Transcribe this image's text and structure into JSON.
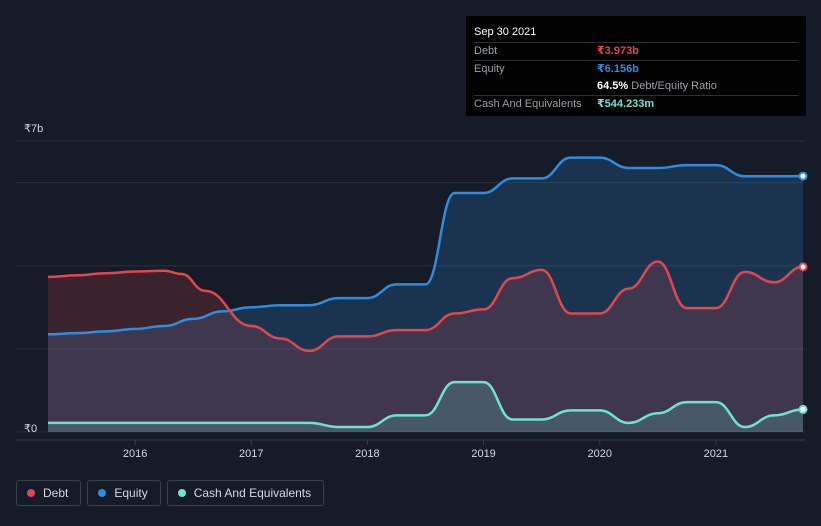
{
  "tooltip": {
    "date": "Sep 30 2021",
    "debt_label": "Debt",
    "debt_value": "₹3.973b",
    "equity_label": "Equity",
    "equity_value": "₹6.156b",
    "ratio_value": "64.5%",
    "ratio_label": "Debt/Equity Ratio",
    "cash_label": "Cash And Equivalents",
    "cash_value": "₹544.233m"
  },
  "legend": {
    "debt": "Debt",
    "equity": "Equity",
    "cash": "Cash And Equivalents"
  },
  "colors": {
    "debt": "#e2474f",
    "equity": "#2e8de0",
    "cash": "#6fe3d1",
    "background": "#151b27"
  },
  "chart_data": {
    "type": "area",
    "y_tick_labels": [
      "₹0",
      "₹7b"
    ],
    "ylim": [
      0,
      7
    ],
    "xlim": [
      2015.25,
      2021.75
    ],
    "x_tick_labels": [
      "2016",
      "2017",
      "2018",
      "2019",
      "2020",
      "2021"
    ],
    "x_ticks": [
      2016,
      2017,
      2018,
      2019,
      2020,
      2021
    ],
    "gridlines": [
      0,
      2,
      4,
      6,
      7
    ],
    "series": [
      {
        "name": "Debt",
        "points": [
          [
            2015.25,
            3.73
          ],
          [
            2015.5,
            3.77
          ],
          [
            2015.75,
            3.82
          ],
          [
            2016.0,
            3.86
          ],
          [
            2016.25,
            3.88
          ],
          [
            2016.4,
            3.8
          ],
          [
            2016.6,
            3.4
          ],
          [
            2017.0,
            2.55
          ],
          [
            2017.25,
            2.25
          ],
          [
            2017.5,
            1.95
          ],
          [
            2017.75,
            2.3
          ],
          [
            2018.0,
            2.3
          ],
          [
            2018.25,
            2.45
          ],
          [
            2018.5,
            2.45
          ],
          [
            2018.75,
            2.85
          ],
          [
            2019.0,
            2.95
          ],
          [
            2019.25,
            3.7
          ],
          [
            2019.5,
            3.9
          ],
          [
            2019.75,
            2.85
          ],
          [
            2020.0,
            2.85
          ],
          [
            2020.25,
            3.45
          ],
          [
            2020.5,
            4.1
          ],
          [
            2020.75,
            2.98
          ],
          [
            2021.0,
            2.98
          ],
          [
            2021.25,
            3.85
          ],
          [
            2021.5,
            3.6
          ],
          [
            2021.75,
            3.973
          ]
        ]
      },
      {
        "name": "Equity",
        "points": [
          [
            2015.25,
            2.35
          ],
          [
            2015.5,
            2.38
          ],
          [
            2015.75,
            2.42
          ],
          [
            2016.0,
            2.48
          ],
          [
            2016.25,
            2.55
          ],
          [
            2016.5,
            2.72
          ],
          [
            2016.75,
            2.9
          ],
          [
            2017.0,
            3.0
          ],
          [
            2017.25,
            3.05
          ],
          [
            2017.5,
            3.05
          ],
          [
            2017.75,
            3.22
          ],
          [
            2018.0,
            3.22
          ],
          [
            2018.25,
            3.55
          ],
          [
            2018.5,
            3.55
          ],
          [
            2018.75,
            5.75
          ],
          [
            2019.0,
            5.75
          ],
          [
            2019.25,
            6.1
          ],
          [
            2019.5,
            6.1
          ],
          [
            2019.75,
            6.6
          ],
          [
            2020.0,
            6.6
          ],
          [
            2020.25,
            6.35
          ],
          [
            2020.5,
            6.35
          ],
          [
            2020.75,
            6.42
          ],
          [
            2021.0,
            6.42
          ],
          [
            2021.25,
            6.15
          ],
          [
            2021.5,
            6.15
          ],
          [
            2021.75,
            6.156
          ]
        ]
      },
      {
        "name": "Cash And Equivalents",
        "points": [
          [
            2015.25,
            0.22
          ],
          [
            2015.5,
            0.22
          ],
          [
            2015.75,
            0.22
          ],
          [
            2016.0,
            0.22
          ],
          [
            2016.25,
            0.22
          ],
          [
            2016.5,
            0.22
          ],
          [
            2016.75,
            0.22
          ],
          [
            2017.0,
            0.22
          ],
          [
            2017.25,
            0.22
          ],
          [
            2017.5,
            0.22
          ],
          [
            2017.75,
            0.12
          ],
          [
            2018.0,
            0.12
          ],
          [
            2018.25,
            0.4
          ],
          [
            2018.5,
            0.4
          ],
          [
            2018.75,
            1.2
          ],
          [
            2019.0,
            1.2
          ],
          [
            2019.25,
            0.3
          ],
          [
            2019.5,
            0.3
          ],
          [
            2019.75,
            0.52
          ],
          [
            2020.0,
            0.52
          ],
          [
            2020.25,
            0.22
          ],
          [
            2020.5,
            0.45
          ],
          [
            2020.75,
            0.72
          ],
          [
            2021.0,
            0.72
          ],
          [
            2021.25,
            0.12
          ],
          [
            2021.5,
            0.4
          ],
          [
            2021.75,
            0.544
          ]
        ]
      }
    ]
  }
}
